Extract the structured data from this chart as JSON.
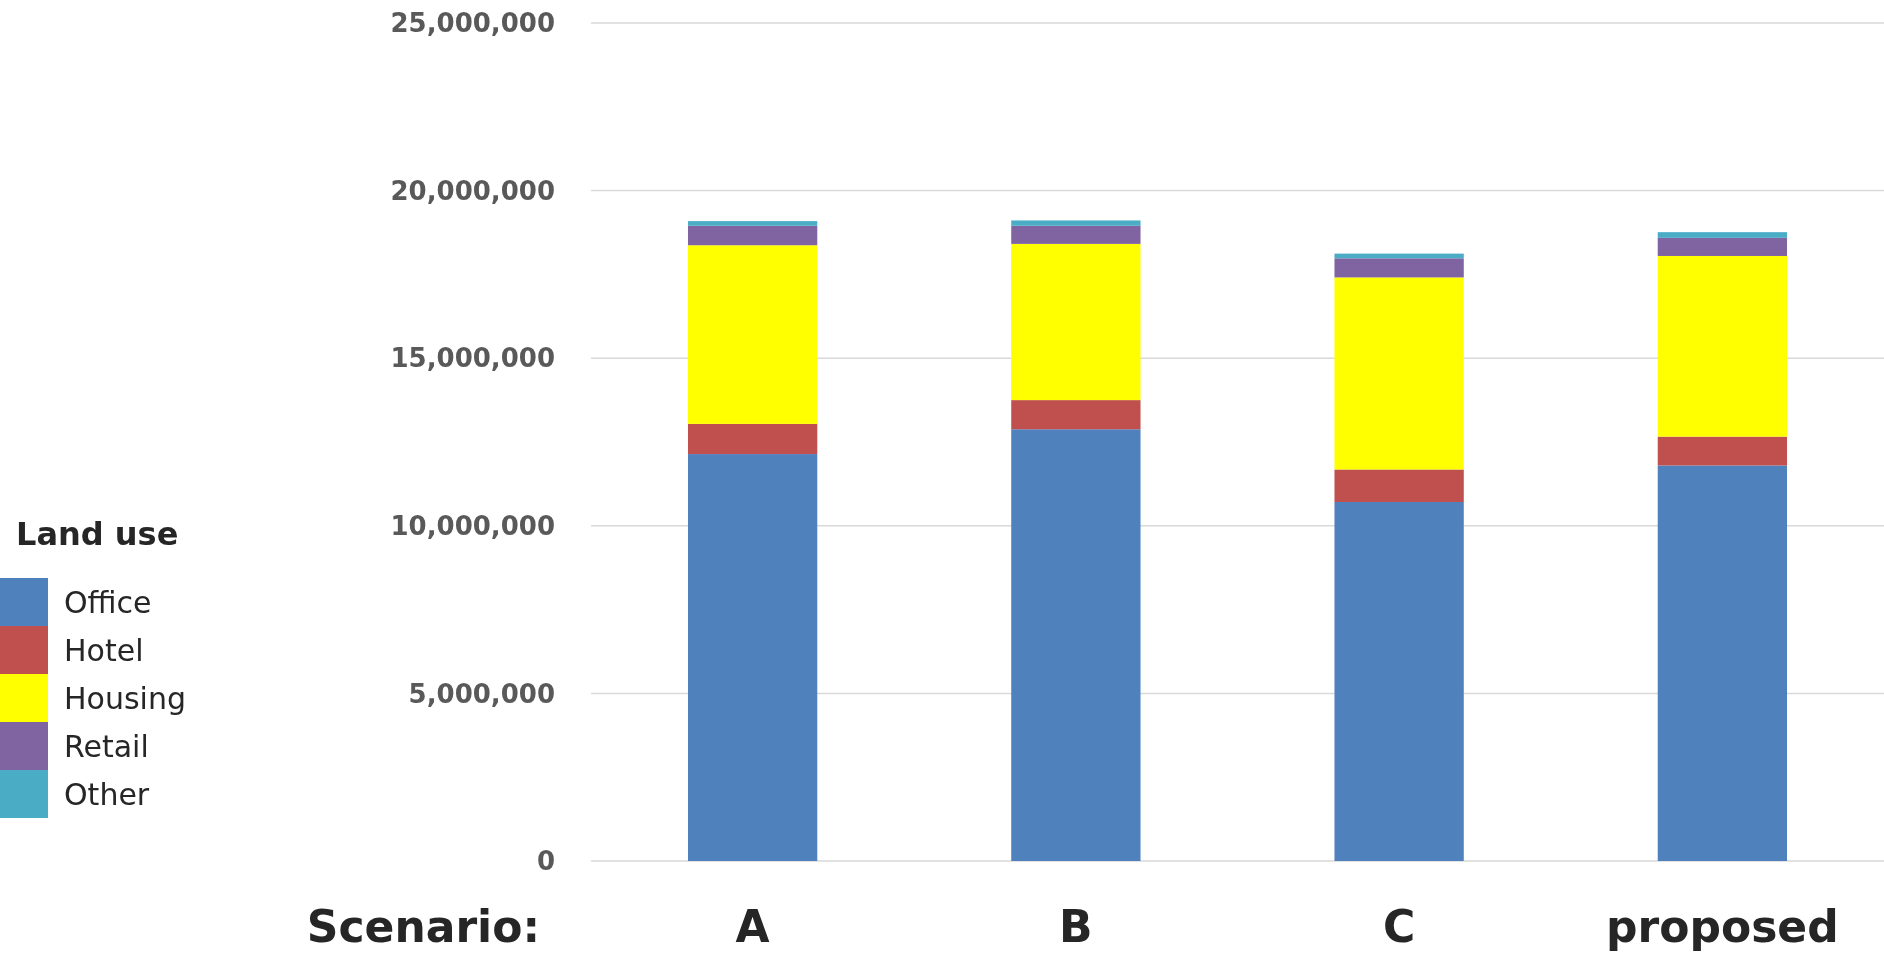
{
  "chart_data": {
    "type": "bar",
    "stacked": true,
    "xlabel": "Scenario:",
    "legend_title": "Land use",
    "legend": "left",
    "grid": "y",
    "categories": [
      "A",
      "B",
      "C",
      "proposed"
    ],
    "ylim": [
      0,
      25000000
    ],
    "yticks": [
      {
        "value": 0,
        "label": "0"
      },
      {
        "value": 5000000,
        "label": "5,000,000"
      },
      {
        "value": 10000000,
        "label": "10,000,000"
      },
      {
        "value": 15000000,
        "label": "15,000,000"
      },
      {
        "value": 20000000,
        "label": "20,000,000"
      },
      {
        "value": 25000000,
        "label": "25,000,000"
      }
    ],
    "series": [
      {
        "name": "Office",
        "color": "#4f81bd",
        "values": [
          12140000,
          12880000,
          10710000,
          11800000
        ]
      },
      {
        "name": "Hotel",
        "color": "#c0504d",
        "values": [
          900000,
          870000,
          970000,
          860000
        ]
      },
      {
        "name": "Housing",
        "color": "#ffff00",
        "values": [
          5330000,
          4660000,
          5730000,
          5390000
        ]
      },
      {
        "name": "Retail",
        "color": "#8064a2",
        "values": [
          580000,
          540000,
          570000,
          540000
        ]
      },
      {
        "name": "Other",
        "color": "#4bacc6",
        "values": [
          140000,
          160000,
          140000,
          170000
        ]
      }
    ]
  }
}
